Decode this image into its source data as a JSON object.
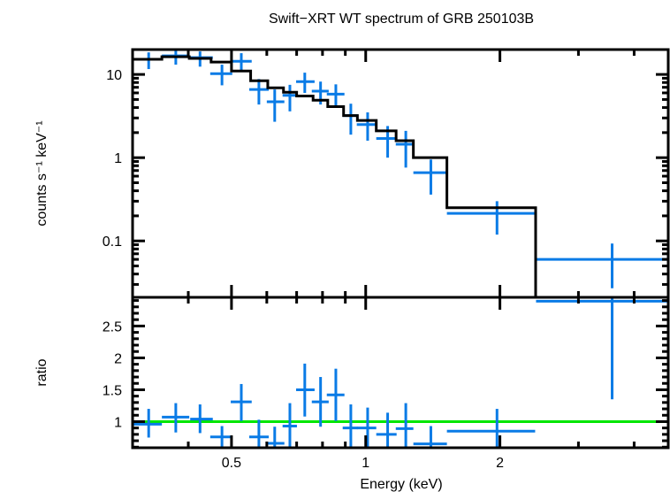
{
  "chart_data": {
    "type": "scatter",
    "title": "Swift−XRT WT spectrum of GRB 250103B",
    "xlabel": "Energy (keV)",
    "xscale": "log",
    "xlim": [
      0.3,
      4.77
    ],
    "xticks": [
      {
        "value": 0.5,
        "label": "0.5"
      },
      {
        "value": 1,
        "label": "1"
      },
      {
        "value": 2,
        "label": "2"
      }
    ],
    "xminor": [
      0.3,
      0.4,
      0.6,
      0.7,
      0.8,
      0.9,
      3,
      4
    ],
    "colors": {
      "data": "#0a7be6",
      "model": "#000000",
      "ratio_line": "#00e600",
      "axes": "#000000"
    },
    "panels": [
      {
        "name": "spectrum",
        "ylabel": "counts s⁻¹ keV⁻¹",
        "yscale": "log",
        "ylim": [
          0.021,
          19.9
        ],
        "yticks": [
          {
            "value": 0.1,
            "label": "0.1"
          },
          {
            "value": 1,
            "label": "1"
          },
          {
            "value": 10,
            "label": "10"
          }
        ],
        "series": [
          {
            "name": "data",
            "style": "crosses",
            "points": [
              {
                "x": 0.326,
                "xlo": 0.3,
                "xhi": 0.349,
                "y": 15.2,
                "ylo": 11.6,
                "yhi": 18.4
              },
              {
                "x": 0.375,
                "xlo": 0.349,
                "xhi": 0.402,
                "y": 16.7,
                "ylo": 13.1,
                "yhi": 20.3
              },
              {
                "x": 0.425,
                "xlo": 0.404,
                "xhi": 0.454,
                "y": 15.9,
                "ylo": 12.4,
                "yhi": 18.9
              },
              {
                "x": 0.476,
                "xlo": 0.448,
                "xhi": 0.502,
                "y": 10.2,
                "ylo": 7.4,
                "yhi": 13.1
              },
              {
                "x": 0.526,
                "xlo": 0.498,
                "xhi": 0.555,
                "y": 14.4,
                "ylo": 11.3,
                "yhi": 18.0
              },
              {
                "x": 0.576,
                "xlo": 0.548,
                "xhi": 0.606,
                "y": 6.6,
                "ylo": 4.35,
                "yhi": 8.8
              },
              {
                "x": 0.625,
                "xlo": 0.6,
                "xhi": 0.657,
                "y": 4.7,
                "ylo": 2.7,
                "yhi": 6.6
              },
              {
                "x": 0.676,
                "xlo": 0.651,
                "xhi": 0.701,
                "y": 5.6,
                "ylo": 3.6,
                "yhi": 7.5
              },
              {
                "x": 0.73,
                "xlo": 0.698,
                "xhi": 0.768,
                "y": 8.2,
                "ylo": 6.0,
                "yhi": 10.5
              },
              {
                "x": 0.792,
                "xlo": 0.757,
                "xhi": 0.826,
                "y": 6.3,
                "ylo": 4.35,
                "yhi": 8.2
              },
              {
                "x": 0.857,
                "xlo": 0.818,
                "xhi": 0.896,
                "y": 5.8,
                "ylo": 4.2,
                "yhi": 7.6
              },
              {
                "x": 0.926,
                "xlo": 0.888,
                "xhi": 0.96,
                "y": 3.2,
                "ylo": 1.89,
                "yhi": 4.45
              },
              {
                "x": 1.01,
                "xlo": 0.955,
                "xhi": 1.056,
                "y": 2.5,
                "ylo": 1.6,
                "yhi": 3.5
              },
              {
                "x": 1.12,
                "xlo": 1.056,
                "xhi": 1.173,
                "y": 1.7,
                "ylo": 1.0,
                "yhi": 2.4
              },
              {
                "x": 1.23,
                "xlo": 1.168,
                "xhi": 1.279,
                "y": 1.45,
                "ylo": 0.76,
                "yhi": 2.1
              },
              {
                "x": 1.4,
                "xlo": 1.279,
                "xhi": 1.521,
                "y": 0.66,
                "ylo": 0.36,
                "yhi": 0.95
              },
              {
                "x": 1.97,
                "xlo": 1.521,
                "xhi": 2.399,
                "y": 0.214,
                "ylo": 0.119,
                "yhi": 0.3
              },
              {
                "x": 3.57,
                "xlo": 2.41,
                "xhi": 4.77,
                "y": 0.06,
                "ylo": 0.027,
                "yhi": 0.093
              }
            ]
          },
          {
            "name": "model",
            "style": "steps",
            "bins": [
              {
                "xlo": 0.3,
                "xhi": 0.349,
                "y": 15.2
              },
              {
                "xlo": 0.349,
                "xhi": 0.402,
                "y": 16.3
              },
              {
                "xlo": 0.402,
                "xhi": 0.45,
                "y": 15.6
              },
              {
                "xlo": 0.45,
                "xhi": 0.5,
                "y": 14.1
              },
              {
                "xlo": 0.5,
                "xhi": 0.552,
                "y": 11.0
              },
              {
                "xlo": 0.552,
                "xhi": 0.603,
                "y": 8.4
              },
              {
                "xlo": 0.603,
                "xhi": 0.654,
                "y": 6.9
              },
              {
                "xlo": 0.654,
                "xhi": 0.7,
                "y": 6.1
              },
              {
                "xlo": 0.7,
                "xhi": 0.762,
                "y": 5.5
              },
              {
                "xlo": 0.762,
                "xhi": 0.822,
                "y": 4.9
              },
              {
                "xlo": 0.822,
                "xhi": 0.892,
                "y": 4.1
              },
              {
                "xlo": 0.892,
                "xhi": 0.958,
                "y": 3.2
              },
              {
                "xlo": 0.958,
                "xhi": 1.056,
                "y": 2.8
              },
              {
                "xlo": 1.056,
                "xhi": 1.17,
                "y": 2.1
              },
              {
                "xlo": 1.17,
                "xhi": 1.279,
                "y": 1.6
              },
              {
                "xlo": 1.279,
                "xhi": 1.521,
                "y": 1.0
              },
              {
                "xlo": 1.521,
                "xhi": 2.405,
                "y": 0.25
              },
              {
                "xlo": 2.405,
                "xhi": 4.77,
                "y": 0.015
              }
            ]
          }
        ]
      },
      {
        "name": "ratio",
        "ylabel": "ratio",
        "yscale": "linear",
        "ylim": [
          0.59,
          2.95
        ],
        "yticks": [
          {
            "value": 1,
            "label": "1"
          },
          {
            "value": 1.5,
            "label": "1.5"
          },
          {
            "value": 2,
            "label": "2"
          },
          {
            "value": 2.5,
            "label": "2.5"
          }
        ],
        "reference_line": 1,
        "series": [
          {
            "name": "ratio",
            "style": "crosses",
            "points": [
              {
                "x": 0.326,
                "xlo": 0.3,
                "xhi": 0.349,
                "y": 0.96,
                "ylo": 0.75,
                "yhi": 1.2
              },
              {
                "x": 0.375,
                "xlo": 0.349,
                "xhi": 0.402,
                "y": 1.07,
                "ylo": 0.83,
                "yhi": 1.29
              },
              {
                "x": 0.425,
                "xlo": 0.404,
                "xhi": 0.454,
                "y": 1.04,
                "ylo": 0.82,
                "yhi": 1.27
              },
              {
                "x": 0.476,
                "xlo": 0.448,
                "xhi": 0.502,
                "y": 0.76,
                "ylo": 0.58,
                "yhi": 0.93
              },
              {
                "x": 0.526,
                "xlo": 0.498,
                "xhi": 0.555,
                "y": 1.31,
                "ylo": 1.01,
                "yhi": 1.59
              },
              {
                "x": 0.576,
                "xlo": 0.548,
                "xhi": 0.606,
                "y": 0.76,
                "ylo": 0.5,
                "yhi": 1.03
              },
              {
                "x": 0.625,
                "xlo": 0.6,
                "xhi": 0.657,
                "y": 0.66,
                "ylo": 0.4,
                "yhi": 0.92
              },
              {
                "x": 0.676,
                "xlo": 0.651,
                "xhi": 0.701,
                "y": 0.93,
                "ylo": 0.55,
                "yhi": 1.29
              },
              {
                "x": 0.73,
                "xlo": 0.698,
                "xhi": 0.768,
                "y": 1.5,
                "ylo": 1.08,
                "yhi": 1.91
              },
              {
                "x": 0.792,
                "xlo": 0.757,
                "xhi": 0.826,
                "y": 1.31,
                "ylo": 0.92,
                "yhi": 1.7
              },
              {
                "x": 0.857,
                "xlo": 0.818,
                "xhi": 0.896,
                "y": 1.42,
                "ylo": 1.01,
                "yhi": 1.83
              },
              {
                "x": 0.926,
                "xlo": 0.888,
                "xhi": 0.96,
                "y": 0.9,
                "ylo": 0.5,
                "yhi": 1.27
              },
              {
                "x": 1.01,
                "xlo": 0.955,
                "xhi": 1.056,
                "y": 0.9,
                "ylo": 0.55,
                "yhi": 1.22
              },
              {
                "x": 1.12,
                "xlo": 1.056,
                "xhi": 1.173,
                "y": 0.8,
                "ylo": 0.5,
                "yhi": 1.14
              },
              {
                "x": 1.23,
                "xlo": 1.168,
                "xhi": 1.279,
                "y": 0.89,
                "ylo": 0.5,
                "yhi": 1.29
              },
              {
                "x": 1.4,
                "xlo": 1.279,
                "xhi": 1.521,
                "y": 0.65,
                "ylo": 0.4,
                "yhi": 0.93
              },
              {
                "x": 1.97,
                "xlo": 1.521,
                "xhi": 2.399,
                "y": 0.85,
                "ylo": 0.5,
                "yhi": 1.2
              },
              {
                "x": 3.57,
                "xlo": 2.41,
                "xhi": 4.77,
                "y": 2.89,
                "ylo": 1.35,
                "yhi": 4.5
              }
            ]
          }
        ]
      }
    ]
  }
}
